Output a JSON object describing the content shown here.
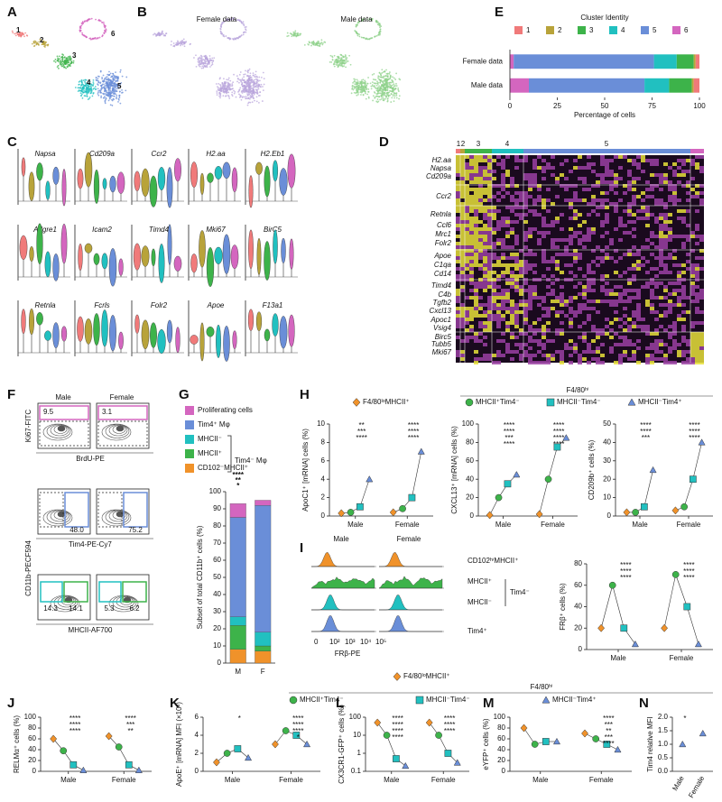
{
  "panel_labels": [
    "A",
    "B",
    "C",
    "D",
    "E",
    "F",
    "G",
    "H",
    "I",
    "J",
    "K",
    "L",
    "M",
    "N"
  ],
  "umap": {
    "clusters": [
      "1",
      "2",
      "3",
      "4",
      "5",
      "6"
    ],
    "titles": [
      "Female data",
      "Male data"
    ]
  },
  "violin": {
    "genes": [
      "Napsa",
      "Cd209a",
      "Ccr2",
      "H2.aa",
      "H2.Eb1",
      "Adgre1",
      "Icam2",
      "Timd4",
      "Mki67",
      "BirC5",
      "Retnla",
      "Fcrls",
      "Folr2",
      "Apoe",
      "F13a1"
    ]
  },
  "heatmap": {
    "clusters": [
      "1",
      "2",
      "3",
      "4",
      "5"
    ],
    "genes": [
      "H2.aa",
      "Napsa",
      "Cd209a",
      "Ccr2",
      "Retnla",
      "Ccl6",
      "Mrc1",
      "Folr2",
      "Apoe",
      "C1qa",
      "Cd14",
      "Timd4",
      "C4b",
      "Tgfb2",
      "Cxcl13",
      "Apoc1",
      "Vsig4",
      "Birc5",
      "Tubb5",
      "Mki67"
    ]
  },
  "flow": {
    "columns": [
      "Male",
      "Female"
    ],
    "rows": [
      {
        "y_label": "Ki67-FITC",
        "x_label": "BrdU-PE",
        "gates": [
          [
            "9.5"
          ],
          [
            "3.1"
          ]
        ]
      },
      {
        "x_label": "Tim4-PE-Cy7",
        "gates": [
          [
            "48.0"
          ],
          [
            "75.2"
          ]
        ]
      },
      {
        "y_label": "CD11b-PECF594",
        "x_label": "MHCII-AF700",
        "gates": [
          [
            "14.3",
            "14.1"
          ],
          [
            "5.3",
            "6.2"
          ]
        ]
      }
    ]
  },
  "histogram": {
    "columns": [
      "Male",
      "Female"
    ],
    "rows": [
      "CD102ʰⁱMHCII⁺",
      "MHCII⁺",
      "MHCII⁻",
      "Tim4⁺"
    ],
    "group_label": "Tim4⁻",
    "x_ticks": [
      "0",
      "10²",
      "10³",
      "10⁴",
      "10⁵"
    ],
    "x_label": "FRβ-PE"
  },
  "chart_data": [
    {
      "type": "bar",
      "horizontal": true,
      "stacked": true,
      "title": "Cluster Identity",
      "categories": [
        "Female data",
        "Male data"
      ],
      "series": [
        {
          "name": "1",
          "color": "#f07a7a",
          "values": [
            2,
            3
          ]
        },
        {
          "name": "2",
          "color": "#b8a33a",
          "values": [
            1,
            1
          ]
        },
        {
          "name": "3",
          "color": "#3db34a",
          "values": [
            9,
            12
          ]
        },
        {
          "name": "4",
          "color": "#21c0c0",
          "values": [
            12,
            13
          ]
        },
        {
          "name": "5",
          "color": "#6a8ed8",
          "values": [
            74,
            61
          ]
        },
        {
          "name": "6",
          "color": "#d466bf",
          "values": [
            2,
            10
          ]
        }
      ],
      "xlabel": "Percentage of cells",
      "xlim": [
        0,
        100
      ],
      "xticks": [
        0,
        25,
        50,
        75,
        100
      ]
    },
    {
      "type": "bar",
      "stacked": true,
      "ylabel": "Subset of total CD11b⁺ cells (%)",
      "categories": [
        "M",
        "F"
      ],
      "series": [
        {
          "name": "CD102⁻MHCII⁺",
          "color": "#f0922a",
          "values": [
            8,
            7
          ]
        },
        {
          "name": "MHCII⁺",
          "color": "#3db34a",
          "values": [
            14,
            3
          ]
        },
        {
          "name": "MHCII⁻",
          "color": "#21c0c0",
          "values": [
            5,
            8
          ]
        },
        {
          "name": "Tim4⁺ Mφ",
          "color": "#6a8ed8",
          "values": [
            58,
            74
          ]
        },
        {
          "name": "Proliferating cells",
          "color": "#d466bf",
          "values": [
            8,
            3
          ]
        }
      ],
      "legend_group": "Tim4⁻ Mφ",
      "annotations": [
        {
          "text": "****",
          "color": "#d466bf"
        },
        {
          "text": "**",
          "color": "#6a8ed8"
        },
        {
          "text": "*",
          "color": "#21c0c0"
        }
      ],
      "ylim": [
        0,
        100
      ],
      "yticks": [
        0,
        10,
        20,
        30,
        40,
        50,
        60,
        70,
        80,
        90,
        100
      ]
    },
    {
      "type": "dot",
      "ylabel": "ApoC1⁺ [mRNA] cells (%)",
      "legend_header": "F4/80ʰⁱ",
      "categories": [
        "Male",
        "Female"
      ],
      "series": [
        {
          "name": "F4/80ˡᵒMHCII⁺",
          "color": "#f0922a",
          "marker": "diamond",
          "values": [
            0.3,
            0.4
          ]
        },
        {
          "name": "MHCII⁺Tim4⁻",
          "color": "#3db34a",
          "marker": "circle",
          "values": [
            0.4,
            0.8
          ]
        },
        {
          "name": "MHCII⁻Tim4⁻",
          "color": "#21c0c0",
          "marker": "square",
          "values": [
            1,
            2
          ]
        },
        {
          "name": "MHCII⁻Tim4⁺",
          "color": "#6a8ed8",
          "marker": "triangle",
          "values": [
            4,
            7
          ]
        }
      ],
      "significance": [
        [
          "**",
          "***",
          "****"
        ],
        [
          "****",
          "****",
          "****"
        ]
      ],
      "ylim": [
        0,
        10
      ],
      "yticks": [
        0,
        2,
        4,
        6,
        8,
        10
      ]
    },
    {
      "type": "dot",
      "ylabel": "CXCL13⁺ [mRNA] cells (%)",
      "categories": [
        "Male",
        "Female"
      ],
      "series": [
        {
          "color": "#f0922a",
          "marker": "diamond",
          "values": [
            1,
            2
          ]
        },
        {
          "color": "#3db34a",
          "marker": "circle",
          "values": [
            20,
            40
          ]
        },
        {
          "color": "#21c0c0",
          "marker": "square",
          "values": [
            35,
            75
          ]
        },
        {
          "color": "#6a8ed8",
          "marker": "triangle",
          "values": [
            45,
            85
          ]
        }
      ],
      "significance": [
        [
          "****",
          "****",
          "***",
          "****"
        ],
        [
          "****",
          "****",
          "****",
          "****"
        ]
      ],
      "ylim": [
        0,
        100
      ],
      "yticks": [
        0,
        20,
        40,
        60,
        80,
        100
      ]
    },
    {
      "type": "dot",
      "ylabel": "CD209b⁺ cells (%)",
      "categories": [
        "Male",
        "Female"
      ],
      "series": [
        {
          "color": "#f0922a",
          "marker": "diamond",
          "values": [
            2,
            3
          ]
        },
        {
          "color": "#3db34a",
          "marker": "circle",
          "values": [
            2,
            5
          ]
        },
        {
          "color": "#21c0c0",
          "marker": "square",
          "values": [
            5,
            20
          ]
        },
        {
          "color": "#6a8ed8",
          "marker": "triangle",
          "values": [
            25,
            40
          ]
        }
      ],
      "significance": [
        [
          "****",
          "****",
          "***"
        ],
        [
          "****",
          "****",
          "****"
        ]
      ],
      "ylim": [
        0,
        50
      ],
      "yticks": [
        0,
        10,
        20,
        30,
        40,
        50
      ]
    },
    {
      "type": "dot",
      "ylabel": "FRβ⁺ cells (%)",
      "categories": [
        "Male",
        "Female"
      ],
      "series": [
        {
          "color": "#f0922a",
          "marker": "diamond",
          "values": [
            20,
            20
          ]
        },
        {
          "color": "#3db34a",
          "marker": "circle",
          "values": [
            60,
            70
          ]
        },
        {
          "color": "#21c0c0",
          "marker": "square",
          "values": [
            20,
            40
          ]
        },
        {
          "color": "#6a8ed8",
          "marker": "triangle",
          "values": [
            5,
            5
          ]
        }
      ],
      "significance": [
        [
          "****",
          "****",
          "****"
        ],
        [
          "****",
          "****",
          "****"
        ]
      ],
      "ylim": [
        0,
        80
      ],
      "yticks": [
        0,
        20,
        40,
        60,
        80
      ]
    },
    {
      "type": "dot",
      "ylabel": "RELMα⁺ cells (%)",
      "categories": [
        "Male",
        "Female"
      ],
      "series": [
        {
          "color": "#f0922a",
          "marker": "diamond",
          "values": [
            60,
            65
          ]
        },
        {
          "color": "#3db34a",
          "marker": "circle",
          "values": [
            38,
            45
          ]
        },
        {
          "color": "#21c0c0",
          "marker": "square",
          "values": [
            12,
            12
          ]
        },
        {
          "color": "#6a8ed8",
          "marker": "triangle",
          "values": [
            2,
            2
          ]
        }
      ],
      "significance": [
        [
          "****",
          "****",
          "****"
        ],
        [
          "****",
          "***",
          "**"
        ]
      ],
      "ylim": [
        0,
        100
      ],
      "yticks": [
        0,
        20,
        40,
        60,
        80,
        100
      ]
    },
    {
      "type": "dot",
      "ylabel": "ApoE⁺ [mRNA] MFI (×10³)",
      "legend_header": "F4/80ʰⁱ",
      "categories": [
        "Male",
        "Female"
      ],
      "series": [
        {
          "name": "F4/80ˡᵒMHCII⁺",
          "color": "#f0922a",
          "marker": "diamond",
          "values": [
            1,
            3
          ]
        },
        {
          "name": "MHCII⁺Tim4⁻",
          "color": "#3db34a",
          "marker": "circle",
          "values": [
            2,
            4.5
          ]
        },
        {
          "name": "MHCII⁻Tim4⁻",
          "color": "#21c0c0",
          "marker": "square",
          "values": [
            2.5,
            4
          ]
        },
        {
          "name": "MHCII⁻Tim4⁺",
          "color": "#6a8ed8",
          "marker": "triangle",
          "values": [
            1.5,
            3
          ]
        }
      ],
      "significance": [
        [
          "*"
        ],
        [
          "****",
          "****",
          "****",
          "*"
        ]
      ],
      "ylim": [
        0,
        6
      ],
      "yticks": [
        0,
        2,
        4,
        6
      ]
    },
    {
      "type": "dot",
      "log": true,
      "ylabel": "CX3CR1-GFP⁺ cells (%)",
      "categories": [
        "Male",
        "Female"
      ],
      "series": [
        {
          "color": "#f0922a",
          "marker": "diamond",
          "values": [
            50,
            50
          ]
        },
        {
          "color": "#3db34a",
          "marker": "circle",
          "values": [
            10,
            10
          ]
        },
        {
          "color": "#21c0c0",
          "marker": "square",
          "values": [
            0.5,
            1
          ]
        },
        {
          "color": "#6a8ed8",
          "marker": "triangle",
          "values": [
            0.2,
            0.3
          ]
        }
      ],
      "significance": [
        [
          "****",
          "****",
          "****",
          "****"
        ],
        [
          "****",
          "****",
          "****"
        ]
      ],
      "ylim": [
        0.1,
        100
      ],
      "yticks": [
        0.1,
        1,
        10,
        100
      ]
    },
    {
      "type": "dot",
      "ylabel": "eYFP⁺ cells (%)",
      "categories": [
        "Male",
        "Female"
      ],
      "series": [
        {
          "color": "#f0922a",
          "marker": "diamond",
          "values": [
            80,
            70
          ]
        },
        {
          "color": "#3db34a",
          "marker": "circle",
          "values": [
            50,
            60
          ]
        },
        {
          "color": "#21c0c0",
          "marker": "square",
          "values": [
            55,
            50
          ]
        },
        {
          "color": "#6a8ed8",
          "marker": "triangle",
          "values": [
            55,
            40
          ]
        }
      ],
      "significance": [
        [],
        [
          "****",
          "***",
          "**",
          "***",
          "****"
        ]
      ],
      "ylim": [
        0,
        100
      ],
      "yticks": [
        0,
        20,
        40,
        60,
        80,
        100
      ]
    },
    {
      "type": "dot",
      "ylabel": "Tim4 relative MFI",
      "categories": [
        "Male",
        "Female"
      ],
      "rotate_categories": true,
      "series": [
        {
          "color": "#6a8ed8",
          "marker": "triangle",
          "values": [
            1,
            1.4
          ]
        }
      ],
      "significance": [
        [
          "*"
        ],
        []
      ],
      "ylim": [
        0,
        2
      ],
      "yticks": [
        {
          "value": 0,
          "label": "0.0"
        },
        {
          "value": 0.5,
          "label": "0.5"
        },
        {
          "value": 1,
          "label": "1.0"
        },
        {
          "value": 1.5,
          "label": "1.5"
        },
        {
          "value": 2,
          "label": "2.0"
        }
      ]
    }
  ]
}
